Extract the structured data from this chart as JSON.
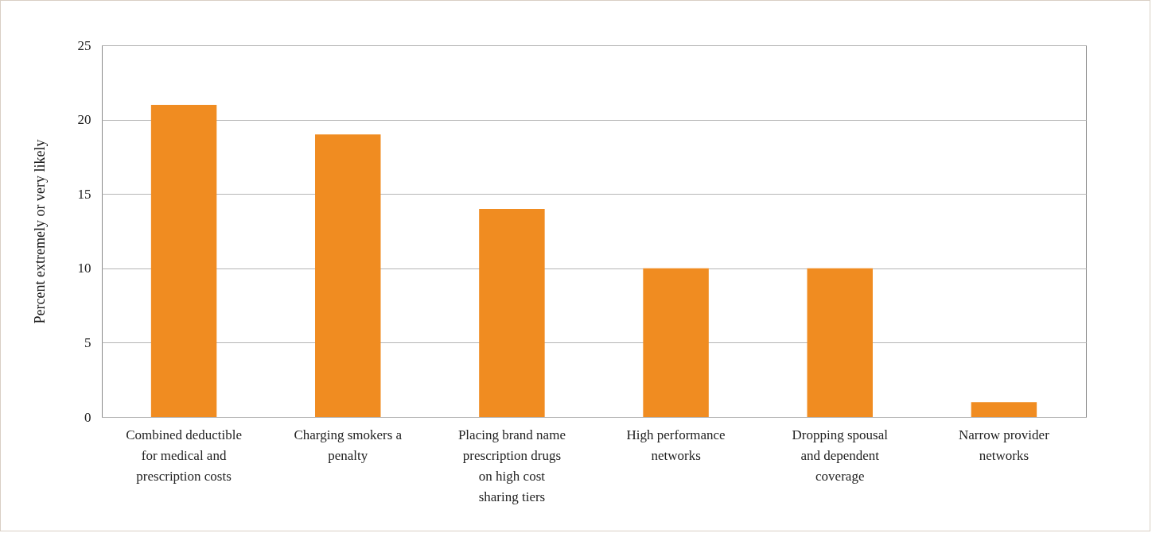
{
  "chart_data": {
    "type": "bar",
    "ylabel": "Percent extremely or very likely",
    "categories": [
      "Combined deductible for medical and prescription costs",
      "Charging smokers a penalty",
      "Placing brand name prescription drugs on high cost sharing tiers",
      "High performance networks",
      "Dropping spousal and dependent coverage",
      "Narrow provider networks"
    ],
    "values": [
      21,
      19,
      14,
      10,
      10,
      1
    ],
    "color": "#f08c21",
    "ylim": [
      0,
      25
    ],
    "yticks": [
      0,
      5,
      10,
      15,
      20,
      25
    ],
    "grid": "y"
  }
}
